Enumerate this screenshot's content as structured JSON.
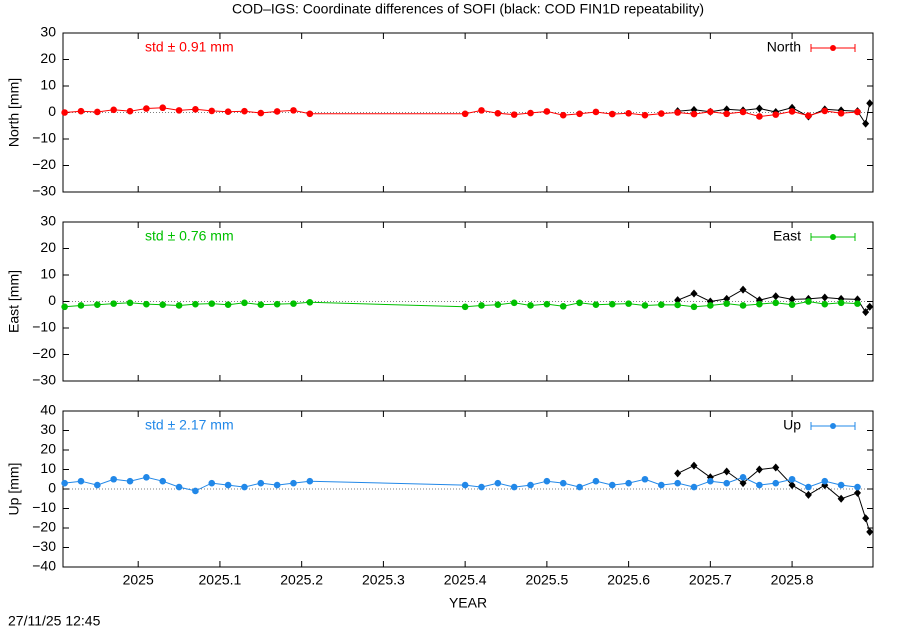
{
  "chart_data": {
    "type": "line",
    "title": "COD–IGS: Coordinate differences of SOFI (black: COD FIN1D repeatability)",
    "xlabel": "YEAR",
    "xlim": [
      2024.908,
      2025.899
    ],
    "xticks": [
      2025,
      2025.1,
      2025.2,
      2025.3,
      2025.4,
      2025.5,
      2025.6,
      2025.7,
      2025.8
    ],
    "zero_line": true,
    "panels": [
      {
        "ylabel": "North [mm]",
        "annotation": "std ± 0.91 mm",
        "legend": "upper right",
        "ylim": [
          -30,
          30
        ],
        "yticks": [
          {
            "value": -30,
            "label": "−30"
          },
          {
            "value": -20,
            "label": "−20"
          },
          {
            "value": -10,
            "label": "−10"
          },
          0,
          10,
          20,
          30
        ],
        "series": [
          {
            "color": "#000000",
            "x": [
              2025.66,
              2025.68,
              2025.7,
              2025.72,
              2025.74,
              2025.76,
              2025.78,
              2025.8,
              2025.82,
              2025.84,
              2025.86,
              2025.88,
              2025.89,
              2025.895
            ],
            "values": [
              0.5,
              1,
              0.3,
              1.2,
              0.8,
              1.5,
              0.2,
              1.8,
              -1.5,
              1.2,
              0.8,
              0.5,
              -4.2,
              3.5
            ]
          },
          {
            "name": "North",
            "color": "#ff0000",
            "x": [
              2024.91,
              2024.93,
              2024.95,
              2024.97,
              2024.99,
              2025.01,
              2025.03,
              2025.05,
              2025.07,
              2025.09,
              2025.11,
              2025.13,
              2025.15,
              2025.17,
              2025.19,
              2025.21,
              2025.4,
              2025.42,
              2025.44,
              2025.46,
              2025.48,
              2025.5,
              2025.52,
              2025.54,
              2025.56,
              2025.58,
              2025.6,
              2025.62,
              2025.64,
              2025.66,
              2025.68,
              2025.7,
              2025.72,
              2025.74,
              2025.76,
              2025.78,
              2025.8,
              2025.82,
              2025.84,
              2025.86,
              2025.88
            ],
            "values": [
              0,
              0.5,
              0.2,
              1,
              0.5,
              1.5,
              1.8,
              0.8,
              1.2,
              0.6,
              0.3,
              0.5,
              -0.2,
              0.4,
              0.8,
              -0.5,
              -0.5,
              0.8,
              -0.3,
              -0.8,
              -0.2,
              0.4,
              -1,
              -0.5,
              0.2,
              -0.6,
              -0.3,
              -1,
              -0.4,
              0,
              -0.6,
              0.3,
              -0.5,
              0.2,
              -1.5,
              -0.8,
              0.4,
              -1.2,
              0.6,
              -0.3,
              0.2
            ]
          }
        ]
      },
      {
        "ylabel": "East [mm]",
        "annotation": "std ± 0.76 mm",
        "legend": "upper right",
        "ylim": [
          -30,
          30
        ],
        "yticks": [
          {
            "value": -30,
            "label": "−30"
          },
          {
            "value": -20,
            "label": "−20"
          },
          {
            "value": -10,
            "label": "−10"
          },
          0,
          10,
          20,
          30
        ],
        "series": [
          {
            "color": "#000000",
            "x": [
              2025.66,
              2025.68,
              2025.7,
              2025.72,
              2025.74,
              2025.76,
              2025.78,
              2025.8,
              2025.82,
              2025.84,
              2025.86,
              2025.88,
              2025.89,
              2025.895
            ],
            "values": [
              0.5,
              3,
              0,
              1,
              4.5,
              0.5,
              2,
              0.8,
              1,
              1.5,
              1,
              0.8,
              -4,
              -2
            ]
          },
          {
            "name": "East",
            "color": "#00c000",
            "x": [
              2024.91,
              2024.93,
              2024.95,
              2024.97,
              2024.99,
              2025.01,
              2025.03,
              2025.05,
              2025.07,
              2025.09,
              2025.11,
              2025.13,
              2025.15,
              2025.17,
              2025.19,
              2025.21,
              2025.4,
              2025.42,
              2025.44,
              2025.46,
              2025.48,
              2025.5,
              2025.52,
              2025.54,
              2025.56,
              2025.58,
              2025.6,
              2025.62,
              2025.64,
              2025.66,
              2025.68,
              2025.7,
              2025.72,
              2025.74,
              2025.76,
              2025.78,
              2025.8,
              2025.82,
              2025.84,
              2025.86,
              2025.88
            ],
            "values": [
              -2,
              -1.5,
              -1.2,
              -0.8,
              -0.5,
              -1,
              -1.2,
              -1.5,
              -1,
              -0.8,
              -1.2,
              -0.5,
              -1.2,
              -1,
              -0.8,
              -0.3,
              -2,
              -1.5,
              -1.2,
              -0.5,
              -1.5,
              -1,
              -1.8,
              -0.5,
              -1.2,
              -1,
              -0.8,
              -1.5,
              -1.2,
              -1.3,
              -2,
              -1.5,
              -0.8,
              -1.5,
              -1,
              -0.5,
              -1.2,
              0,
              -1,
              -0.5,
              -0.8
            ]
          }
        ]
      },
      {
        "ylabel": "Up [mm]",
        "annotation": "std ± 2.17 mm",
        "legend": "upper right",
        "ylim": [
          -40,
          40
        ],
        "yticks": [
          {
            "value": -40,
            "label": "−40"
          },
          {
            "value": -30,
            "label": "−30"
          },
          {
            "value": -20,
            "label": "−20"
          },
          {
            "value": -10,
            "label": "−10"
          },
          0,
          10,
          20,
          30,
          40
        ],
        "series": [
          {
            "color": "#000000",
            "x": [
              2025.66,
              2025.68,
              2025.7,
              2025.72,
              2025.74,
              2025.76,
              2025.78,
              2025.8,
              2025.82,
              2025.84,
              2025.86,
              2025.88,
              2025.89,
              2025.895
            ],
            "values": [
              8,
              12,
              6,
              9,
              3,
              10,
              11,
              2,
              -3,
              2,
              -5,
              -2,
              -15,
              -22
            ]
          },
          {
            "name": "Up",
            "color": "#2288e8",
            "x": [
              2024.91,
              2024.93,
              2024.95,
              2024.97,
              2024.99,
              2025.01,
              2025.03,
              2025.05,
              2025.07,
              2025.09,
              2025.11,
              2025.13,
              2025.15,
              2025.17,
              2025.19,
              2025.21,
              2025.4,
              2025.42,
              2025.44,
              2025.46,
              2025.48,
              2025.5,
              2025.52,
              2025.54,
              2025.56,
              2025.58,
              2025.6,
              2025.62,
              2025.64,
              2025.66,
              2025.68,
              2025.7,
              2025.72,
              2025.74,
              2025.76,
              2025.78,
              2025.8,
              2025.82,
              2025.84,
              2025.86,
              2025.88
            ],
            "values": [
              3,
              4,
              2,
              5,
              4,
              6,
              4,
              1,
              -1,
              3,
              2,
              1,
              3,
              2,
              3,
              4,
              2,
              1,
              3,
              1,
              2,
              4,
              3,
              1,
              4,
              2,
              3,
              5,
              2,
              3,
              1,
              4,
              3,
              6,
              2,
              3,
              5,
              1,
              4,
              2,
              1
            ]
          }
        ]
      }
    ]
  },
  "footer": "27/11/25 12:45"
}
